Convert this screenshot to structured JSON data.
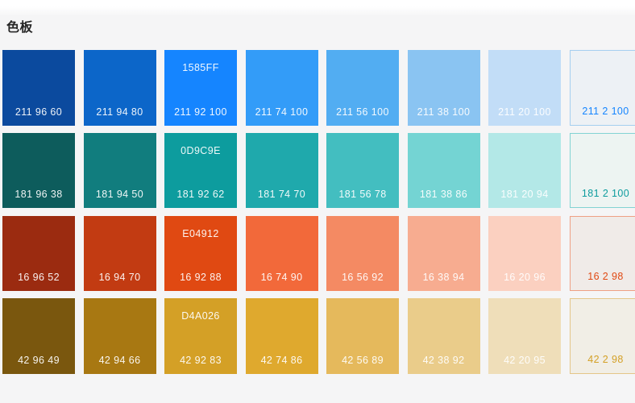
{
  "page": {
    "title": "色板",
    "background": "#F5F5F6",
    "title_color": "#262626"
  },
  "palette": {
    "rows": [
      {
        "name": "blue",
        "hue": 211,
        "primary_hex": "1585FF",
        "swatches": [
          {
            "label": "211 96 60",
            "bg": "#0B4A9E"
          },
          {
            "label": "211 94 80",
            "bg": "#0C66C9"
          },
          {
            "label": "211 92 100",
            "hex_label": "1585FF",
            "bg": "#1585FF"
          },
          {
            "label": "211 74 100",
            "bg": "#339CF8"
          },
          {
            "label": "211 56 100",
            "bg": "#52ADF2"
          },
          {
            "label": "211 38 100",
            "bg": "#8AC4F2"
          },
          {
            "label": "211 20 100",
            "bg": "#C2DDF7"
          },
          {
            "label": "211 2 100",
            "bg": "#EDF1F5",
            "border": "#A5CFF0",
            "text_color": "#1585FF"
          }
        ]
      },
      {
        "name": "teal",
        "hue": 181,
        "primary_hex": "0D9C9E",
        "swatches": [
          {
            "label": "181 96 38",
            "bg": "#0D5C5C"
          },
          {
            "label": "181 94 50",
            "bg": "#117D7E"
          },
          {
            "label": "181 92 62",
            "hex_label": "0D9C9E",
            "bg": "#0D9C9E"
          },
          {
            "label": "181 74 70",
            "bg": "#1FA9AC"
          },
          {
            "label": "181 56 78",
            "bg": "#43BEC0"
          },
          {
            "label": "181 38 86",
            "bg": "#74D4D3"
          },
          {
            "label": "181 20 94",
            "bg": "#B3E8E7"
          },
          {
            "label": "181 2 100",
            "bg": "#EDF4F2",
            "border": "#82D3D3",
            "text_color": "#0D9C9E"
          }
        ]
      },
      {
        "name": "red",
        "hue": 16,
        "primary_hex": "E04912",
        "swatches": [
          {
            "label": "16 96 52",
            "bg": "#9B2B10"
          },
          {
            "label": "16 94 70",
            "bg": "#C23B12"
          },
          {
            "label": "16 92 88",
            "hex_label": "E04912",
            "bg": "#E04912"
          },
          {
            "label": "16 74 90",
            "bg": "#F2693A"
          },
          {
            "label": "16 56 92",
            "bg": "#F48A63"
          },
          {
            "label": "16 38 94",
            "bg": "#F7AC90"
          },
          {
            "label": "16 20 96",
            "bg": "#FBD0C0"
          },
          {
            "label": "16 2 98",
            "bg": "#F0EBE8",
            "border": "#EFA084",
            "text_color": "#E04912"
          }
        ]
      },
      {
        "name": "gold",
        "hue": 42,
        "primary_hex": "D4A026",
        "swatches": [
          {
            "label": "42 96 49",
            "bg": "#7A570E"
          },
          {
            "label": "42 94 66",
            "bg": "#A87812"
          },
          {
            "label": "42 92 83",
            "hex_label": "D4A026",
            "bg": "#D4A026"
          },
          {
            "label": "42 74 86",
            "bg": "#DFA92E"
          },
          {
            "label": "42 56 89",
            "bg": "#E5B95C"
          },
          {
            "label": "42 38 92",
            "bg": "#EACC8A"
          },
          {
            "label": "42 20 95",
            "bg": "#EFDEB9"
          },
          {
            "label": "42 2 98",
            "bg": "#F1EEE6",
            "border": "#E4C689",
            "text_color": "#D4A026"
          }
        ]
      }
    ]
  }
}
